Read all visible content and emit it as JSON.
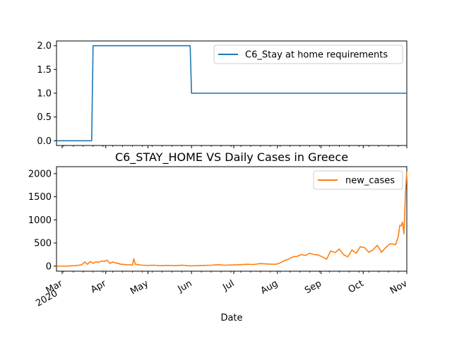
{
  "colors": {
    "series1": "#1f77b4",
    "series2": "#ff7f0e"
  },
  "chart_data": [
    {
      "type": "line",
      "title": "",
      "xlabel": "",
      "ylabel": "",
      "ylim": [
        -0.1,
        2.1
      ],
      "yticks": [
        "0.0",
        "0.5",
        "1.0",
        "1.5",
        "2.0"
      ],
      "legend": "top-right",
      "grid": false,
      "series": [
        {
          "name": "C6_Stay at home requirements",
          "x": [
            "2020-02-26",
            "2020-03-22",
            "2020-03-23",
            "2020-05-31",
            "2020-06-01",
            "2020-11-01"
          ],
          "y": [
            0,
            0,
            2,
            2,
            1,
            1
          ]
        }
      ]
    },
    {
      "type": "line",
      "title": "C6_STAY_HOME VS Daily Cases in Greece",
      "xlabel": "Date",
      "ylabel": "",
      "ylim": [
        -110,
        2150
      ],
      "yticks": [
        "0",
        "500",
        "1000",
        "1500",
        "2000"
      ],
      "xtick_labels": [
        {
          "date": "2020-03-01",
          "label": "Mar",
          "sub": "2020"
        },
        {
          "date": "2020-04-01",
          "label": "Apr",
          "sub": ""
        },
        {
          "date": "2020-05-01",
          "label": "May",
          "sub": ""
        },
        {
          "date": "2020-06-01",
          "label": "Jun",
          "sub": ""
        },
        {
          "date": "2020-07-01",
          "label": "Jul",
          "sub": ""
        },
        {
          "date": "2020-08-01",
          "label": "Aug",
          "sub": ""
        },
        {
          "date": "2020-09-01",
          "label": "Sep",
          "sub": ""
        },
        {
          "date": "2020-10-01",
          "label": "Oct",
          "sub": ""
        },
        {
          "date": "2020-11-01",
          "label": "Nov",
          "sub": ""
        }
      ],
      "legend": "top-right",
      "grid": false,
      "series": [
        {
          "name": "new_cases",
          "x": [
            "2020-02-26",
            "2020-03-05",
            "2020-03-10",
            "2020-03-13",
            "2020-03-15",
            "2020-03-17",
            "2020-03-19",
            "2020-03-21",
            "2020-03-23",
            "2020-03-25",
            "2020-03-27",
            "2020-03-29",
            "2020-03-31",
            "2020-04-02",
            "2020-04-04",
            "2020-04-06",
            "2020-04-08",
            "2020-04-12",
            "2020-04-16",
            "2020-04-20",
            "2020-04-21",
            "2020-04-22",
            "2020-04-24",
            "2020-04-27",
            "2020-05-01",
            "2020-05-05",
            "2020-05-10",
            "2020-05-15",
            "2020-05-20",
            "2020-05-25",
            "2020-05-31",
            "2020-06-05",
            "2020-06-10",
            "2020-06-15",
            "2020-06-20",
            "2020-06-25",
            "2020-06-30",
            "2020-07-05",
            "2020-07-10",
            "2020-07-15",
            "2020-07-20",
            "2020-07-25",
            "2020-07-31",
            "2020-08-03",
            "2020-08-06",
            "2020-08-09",
            "2020-08-12",
            "2020-08-15",
            "2020-08-18",
            "2020-08-21",
            "2020-08-24",
            "2020-08-27",
            "2020-08-30",
            "2020-09-02",
            "2020-09-05",
            "2020-09-08",
            "2020-09-11",
            "2020-09-14",
            "2020-09-17",
            "2020-09-20",
            "2020-09-23",
            "2020-09-26",
            "2020-09-29",
            "2020-10-02",
            "2020-10-05",
            "2020-10-08",
            "2020-10-11",
            "2020-10-14",
            "2020-10-17",
            "2020-10-20",
            "2020-10-22",
            "2020-10-24",
            "2020-10-26",
            "2020-10-27",
            "2020-10-28",
            "2020-10-29",
            "2020-10-30",
            "2020-10-31",
            "2020-11-01"
          ],
          "y": [
            0,
            2,
            10,
            20,
            30,
            90,
            40,
            100,
            60,
            95,
            80,
            110,
            100,
            130,
            60,
            90,
            70,
            40,
            30,
            25,
            160,
            40,
            30,
            20,
            15,
            20,
            10,
            15,
            10,
            20,
            5,
            10,
            15,
            20,
            30,
            20,
            25,
            30,
            40,
            35,
            55,
            45,
            40,
            70,
            120,
            150,
            200,
            210,
            250,
            230,
            280,
            250,
            240,
            200,
            150,
            330,
            290,
            370,
            250,
            200,
            350,
            280,
            420,
            400,
            300,
            350,
            450,
            300,
            400,
            480,
            480,
            460,
            650,
            880,
            870,
            950,
            700,
            1550,
            2050
          ]
        }
      ]
    }
  ]
}
